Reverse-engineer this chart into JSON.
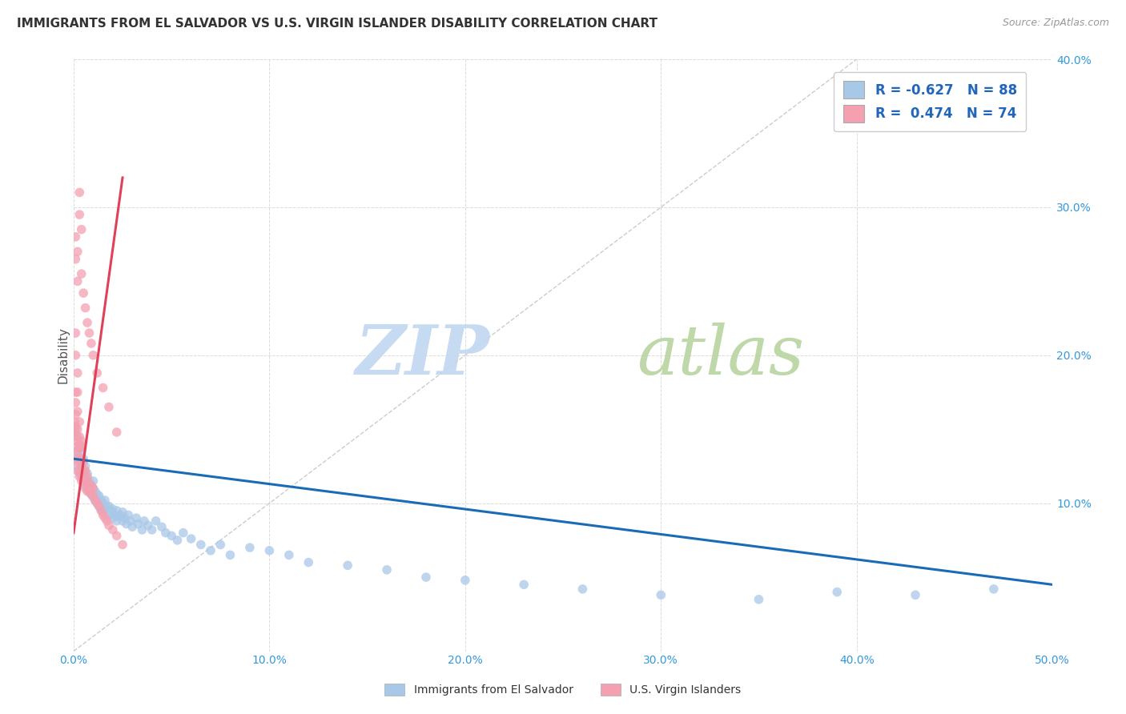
{
  "title": "IMMIGRANTS FROM EL SALVADOR VS U.S. VIRGIN ISLANDER DISABILITY CORRELATION CHART",
  "source": "Source: ZipAtlas.com",
  "ylabel": "Disability",
  "xlim": [
    0.0,
    0.5
  ],
  "ylim": [
    0.0,
    0.4
  ],
  "xticks": [
    0.0,
    0.1,
    0.2,
    0.3,
    0.4,
    0.5
  ],
  "yticks": [
    0.0,
    0.1,
    0.2,
    0.3,
    0.4
  ],
  "xtick_labels": [
    "0.0%",
    "10.0%",
    "20.0%",
    "30.0%",
    "40.0%",
    "50.0%"
  ],
  "ytick_labels_right": [
    "",
    "10.0%",
    "20.0%",
    "30.0%",
    "40.0%"
  ],
  "blue_color": "#A8C8E8",
  "pink_color": "#F4A0B0",
  "blue_line_color": "#1A6BB5",
  "pink_line_color": "#E0405A",
  "grid_color": "#CCCCCC",
  "watermark_zip_color": "#C8DCF0",
  "watermark_atlas_color": "#D8E8C8",
  "legend_R_blue": "-0.627",
  "legend_N_blue": "88",
  "legend_R_pink": "0.474",
  "legend_N_pink": "74",
  "legend_label_blue": "Immigrants from El Salvador",
  "legend_label_pink": "U.S. Virgin Islanders",
  "blue_scatter_x": [
    0.001,
    0.001,
    0.002,
    0.002,
    0.002,
    0.003,
    0.003,
    0.003,
    0.004,
    0.004,
    0.004,
    0.005,
    0.005,
    0.005,
    0.006,
    0.006,
    0.006,
    0.007,
    0.007,
    0.008,
    0.008,
    0.009,
    0.009,
    0.01,
    0.01,
    0.01,
    0.011,
    0.011,
    0.012,
    0.012,
    0.013,
    0.013,
    0.014,
    0.014,
    0.015,
    0.015,
    0.016,
    0.016,
    0.017,
    0.018,
    0.018,
    0.019,
    0.02,
    0.02,
    0.021,
    0.022,
    0.022,
    0.023,
    0.024,
    0.025,
    0.025,
    0.026,
    0.027,
    0.028,
    0.029,
    0.03,
    0.032,
    0.033,
    0.035,
    0.036,
    0.038,
    0.04,
    0.042,
    0.045,
    0.047,
    0.05,
    0.053,
    0.056,
    0.06,
    0.065,
    0.07,
    0.075,
    0.08,
    0.09,
    0.1,
    0.11,
    0.12,
    0.14,
    0.16,
    0.18,
    0.2,
    0.23,
    0.26,
    0.3,
    0.35,
    0.39,
    0.43,
    0.47
  ],
  "blue_scatter_y": [
    0.13,
    0.15,
    0.125,
    0.135,
    0.145,
    0.12,
    0.13,
    0.14,
    0.118,
    0.125,
    0.135,
    0.115,
    0.12,
    0.13,
    0.112,
    0.118,
    0.125,
    0.11,
    0.12,
    0.108,
    0.115,
    0.106,
    0.112,
    0.104,
    0.11,
    0.115,
    0.102,
    0.108,
    0.1,
    0.106,
    0.098,
    0.105,
    0.096,
    0.102,
    0.094,
    0.1,
    0.096,
    0.102,
    0.098,
    0.092,
    0.098,
    0.095,
    0.09,
    0.096,
    0.092,
    0.088,
    0.095,
    0.091,
    0.092,
    0.088,
    0.094,
    0.09,
    0.086,
    0.092,
    0.088,
    0.084,
    0.09,
    0.086,
    0.082,
    0.088,
    0.085,
    0.082,
    0.088,
    0.084,
    0.08,
    0.078,
    0.075,
    0.08,
    0.076,
    0.072,
    0.068,
    0.072,
    0.065,
    0.07,
    0.068,
    0.065,
    0.06,
    0.058,
    0.055,
    0.05,
    0.048,
    0.045,
    0.042,
    0.038,
    0.035,
    0.04,
    0.038,
    0.042
  ],
  "pink_scatter_x": [
    0.0005,
    0.0005,
    0.001,
    0.001,
    0.001,
    0.001,
    0.001,
    0.001,
    0.001,
    0.002,
    0.002,
    0.002,
    0.002,
    0.002,
    0.002,
    0.003,
    0.003,
    0.003,
    0.003,
    0.003,
    0.003,
    0.004,
    0.004,
    0.004,
    0.004,
    0.004,
    0.005,
    0.005,
    0.005,
    0.006,
    0.006,
    0.006,
    0.007,
    0.007,
    0.007,
    0.008,
    0.008,
    0.009,
    0.009,
    0.01,
    0.01,
    0.011,
    0.012,
    0.013,
    0.014,
    0.015,
    0.016,
    0.017,
    0.018,
    0.02,
    0.022,
    0.025,
    0.001,
    0.001,
    0.002,
    0.002,
    0.003,
    0.003,
    0.004,
    0.004,
    0.005,
    0.006,
    0.007,
    0.008,
    0.009,
    0.01,
    0.012,
    0.015,
    0.018,
    0.022,
    0.001,
    0.001,
    0.002,
    0.002
  ],
  "pink_scatter_y": [
    0.155,
    0.148,
    0.16,
    0.152,
    0.145,
    0.138,
    0.168,
    0.175,
    0.13,
    0.15,
    0.142,
    0.135,
    0.162,
    0.128,
    0.122,
    0.145,
    0.138,
    0.13,
    0.155,
    0.122,
    0.118,
    0.138,
    0.13,
    0.125,
    0.142,
    0.115,
    0.128,
    0.122,
    0.118,
    0.122,
    0.115,
    0.11,
    0.115,
    0.108,
    0.118,
    0.112,
    0.108,
    0.106,
    0.112,
    0.105,
    0.11,
    0.102,
    0.1,
    0.098,
    0.095,
    0.092,
    0.09,
    0.088,
    0.085,
    0.082,
    0.078,
    0.072,
    0.265,
    0.28,
    0.25,
    0.27,
    0.31,
    0.295,
    0.285,
    0.255,
    0.242,
    0.232,
    0.222,
    0.215,
    0.208,
    0.2,
    0.188,
    0.178,
    0.165,
    0.148,
    0.215,
    0.2,
    0.188,
    0.175
  ],
  "blue_line_x": [
    0.0,
    0.5
  ],
  "blue_line_y": [
    0.13,
    0.045
  ],
  "pink_line_x": [
    0.0,
    0.025
  ],
  "pink_line_y": [
    0.08,
    0.32
  ],
  "gray_line_x": [
    0.0,
    0.4
  ],
  "gray_line_y": [
    0.0,
    0.4
  ]
}
